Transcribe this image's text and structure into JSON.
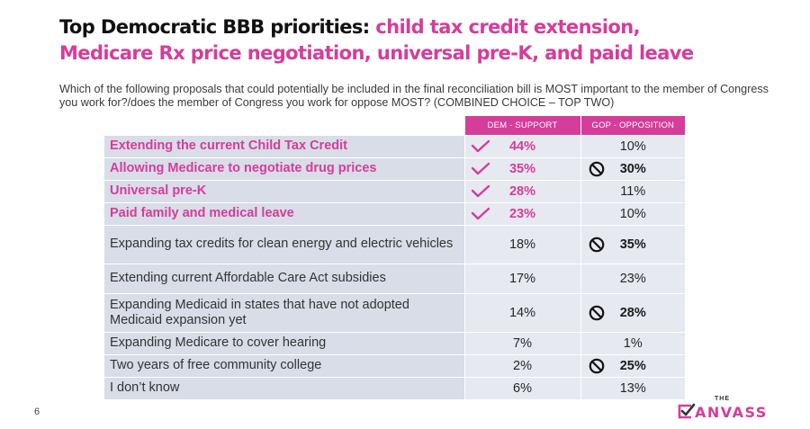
{
  "title": {
    "lead": "Top Democratic BBB priorities:",
    "highlight_1": "child tax credit extension,",
    "highlight_2": "Medicare Rx price negotiation, universal pre-K, and paid leave"
  },
  "subtitle": "Which of the following proposals that could potentially be included in the final reconciliation bill is MOST important to the member of Congress you work for?/does the member of Congress you work for oppose MOST? (COMBINED CHOICE – TOP TWO)",
  "table": {
    "headers": [
      "DEM - SUPPORT",
      "GOP - OPPOSITION"
    ],
    "rows": [
      {
        "label": "Extending the current Child Tax Credit",
        "dem": "44%",
        "gop": "10%"
      },
      {
        "label": "Allowing Medicare to negotiate drug prices",
        "dem": "35%",
        "gop": "30%"
      },
      {
        "label": "Universal pre-K",
        "dem": "28%",
        "gop": "11%"
      },
      {
        "label": "Paid family and medical leave",
        "dem": "23%",
        "gop": "10%"
      },
      {
        "label": "Expanding tax credits for clean energy and electric vehicles",
        "dem": "18%",
        "gop": "35%"
      },
      {
        "label": "Extending current Affordable Care Act subsidies",
        "dem": "17%",
        "gop": "23%"
      },
      {
        "label": "Expanding Medicaid in states that have not adopted Medicaid expansion yet",
        "dem": "14%",
        "gop": "28%"
      },
      {
        "label": "Expanding Medicare to cover hearing",
        "dem": "7%",
        "gop": "1%"
      },
      {
        "label": "Two years of free community college",
        "dem": "2%",
        "gop": "25%"
      },
      {
        "label": "I don’t know",
        "dem": "6%",
        "gop": "13%"
      }
    ]
  },
  "icons": {
    "dem_top": "checkmark-icon",
    "gop_top": "prohibited-icon"
  },
  "colors": {
    "accent": "#d63c9a",
    "label_bg": "#d8dde8",
    "value_bg": "#e6e9f0"
  },
  "page_number": "6",
  "logo": {
    "the": "THE",
    "word": "ANVASS"
  }
}
